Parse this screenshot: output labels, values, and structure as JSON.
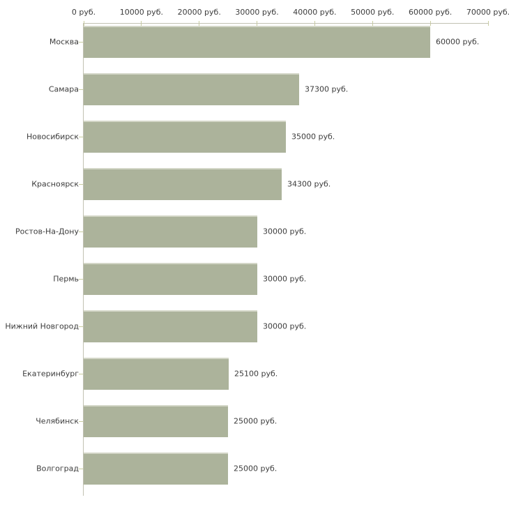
{
  "chart_data": {
    "type": "bar",
    "orientation": "horizontal",
    "title": "",
    "categories": [
      "Москва",
      "Самара",
      "Новосибирск",
      "Красноярск",
      "Ростов-На-Дону",
      "Пермь",
      "Нижний Новгород",
      "Екатеринбург",
      "Челябинск",
      "Волгоград"
    ],
    "values": [
      60000,
      37300,
      35000,
      34300,
      30000,
      30000,
      30000,
      25100,
      25000,
      25000
    ],
    "value_labels": [
      "60000 руб.",
      "37300 руб.",
      "35000 руб.",
      "34300 руб.",
      "30000 руб.",
      "30000 руб.",
      "30000 руб.",
      "25100 руб.",
      "25000 руб.",
      "25000 руб."
    ],
    "unit": "руб.",
    "x_axis": {
      "position": "top",
      "tick_labels": [
        "0 руб.",
        "10000 руб.",
        "20000 руб.",
        "30000 руб.",
        "40000 руб.",
        "50000 руб.",
        "60000 руб.",
        "70000 руб."
      ],
      "tick_values": [
        0,
        10000,
        20000,
        30000,
        40000,
        50000,
        60000,
        70000
      ]
    },
    "xlim": [
      0,
      70000
    ],
    "grid": false,
    "legend": false,
    "colors": {
      "background": "#ffffff",
      "bar_fill": "#acb39b",
      "bar_top_edge": "#d3d6c7",
      "axis_line": "#c1c1b2",
      "tick_mark": "#c9cd9f",
      "text": "#3c3c3c"
    }
  }
}
